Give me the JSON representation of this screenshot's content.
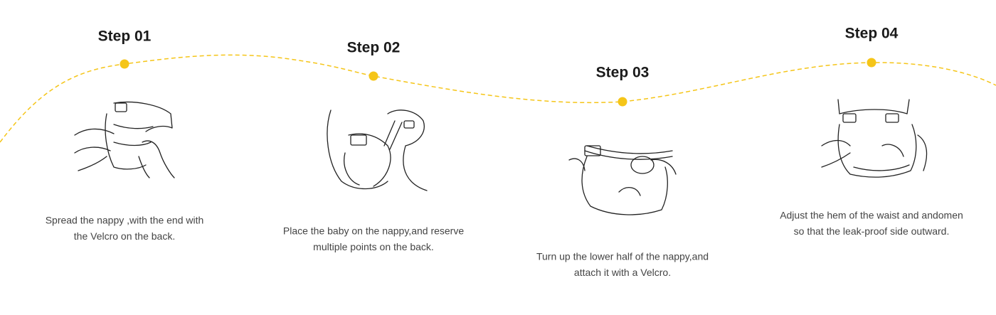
{
  "steps": [
    {
      "title": "Step 01",
      "lines": [
        "Spread the nappy ,with the end with",
        "the Velcro on the back."
      ]
    },
    {
      "title": "Step 02",
      "lines": [
        "Place the baby on the nappy,and reserve",
        "multiple points on the back."
      ]
    },
    {
      "title": "Step 03",
      "lines": [
        "Turn up the lower half of the nappy,and",
        "attach it with a Velcro."
      ]
    },
    {
      "title": "Step 04",
      "lines": [
        "Adjust the hem of the waist and andomen",
        "so that the leak-proof side outward."
      ]
    }
  ]
}
